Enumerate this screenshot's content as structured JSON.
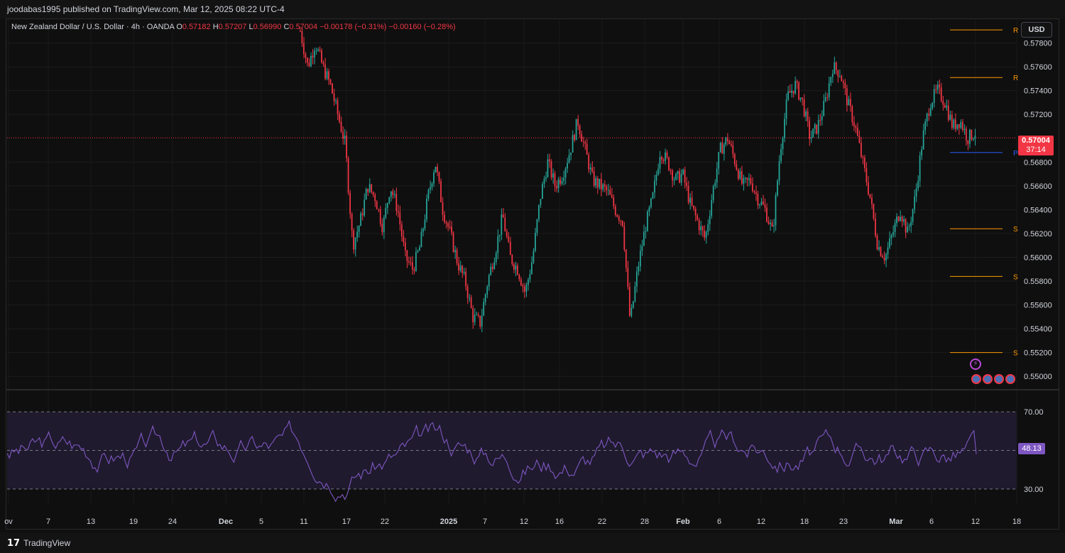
{
  "header": {
    "publisher_text": "joodabas1995 published on TradingView.com, Mar 12, 2025 08:22 UTC-4"
  },
  "legend": {
    "symbol": "New Zealand Dollar / U.S. Dollar · 4h · OANDA",
    "open_label": "O",
    "open": "0.57182",
    "high_label": "H",
    "high": "0.57207",
    "low_label": "L",
    "low": "0.56990",
    "close_label": "C",
    "close": "0.57004",
    "change": "−0.00178 (−0.31%)",
    "change2": "−0.00160 (−0.28%)"
  },
  "currency_button": "USD",
  "last_price": {
    "value": "0.57004",
    "countdown": "37:14"
  },
  "rsi_value": "48.13",
  "footer": {
    "brand": "TradingView"
  },
  "colors": {
    "up": "#26a69a",
    "down": "#f23645",
    "level": "#ff9800",
    "pivot": "#2962ff",
    "rsi": "#7e57c2",
    "rsi_band": "#1f1a2e"
  },
  "chart_data": [
    {
      "type": "candlestick",
      "title": "New Zealand Dollar / U.S. Dollar · 4h · OANDA",
      "ylim": [
        0.549,
        0.58
      ],
      "y_ticks": [
        "0.57800",
        "0.57600",
        "0.57400",
        "0.57200",
        "0.56800",
        "0.56600",
        "0.56400",
        "0.56200",
        "0.56000",
        "0.55800",
        "0.55600",
        "0.55400",
        "0.55200",
        "0.55000"
      ],
      "x_ticks": [
        "ov",
        "7",
        "13",
        "19",
        "24",
        "Dec",
        "5",
        "11",
        "17",
        "22",
        "2025",
        "7",
        "12",
        "16",
        "22",
        "28",
        "Feb",
        "6",
        "12",
        "18",
        "23",
        "Mar",
        "6",
        "12",
        "18"
      ],
      "close_path": [
        [
          "Nov 11",
          0.579
        ],
        [
          "Nov 12",
          0.576
        ],
        [
          "Nov 14",
          0.578
        ],
        [
          "Nov 15",
          0.576
        ],
        [
          "Nov 17",
          0.5745
        ],
        [
          "Nov 18",
          0.572
        ],
        [
          "Nov 19",
          0.5695
        ],
        [
          "Nov 19b",
          0.561
        ],
        [
          "Nov 20",
          0.563
        ],
        [
          "Nov 21",
          0.566
        ],
        [
          "Nov 22",
          0.565
        ],
        [
          "Nov 24",
          0.5625
        ],
        [
          "Nov 26",
          0.566
        ],
        [
          "Nov 27",
          0.564
        ],
        [
          "Nov 28",
          0.56
        ],
        [
          "Nov 29",
          0.559
        ],
        [
          "Dec 1",
          0.561
        ],
        [
          "Dec 3",
          0.565
        ],
        [
          "Dec 4",
          0.568
        ],
        [
          "Dec 5",
          0.564
        ],
        [
          "Dec 6",
          0.562
        ],
        [
          "Dec 7",
          0.5595
        ],
        [
          "Dec 8",
          0.558
        ],
        [
          "Dec 10",
          0.555
        ],
        [
          "Dec 11",
          0.5545
        ],
        [
          "Dec 12",
          0.558
        ],
        [
          "Dec 13",
          0.5605
        ],
        [
          "Dec 15",
          0.5635
        ],
        [
          "Dec 16",
          0.56
        ],
        [
          "Dec 17",
          0.559
        ],
        [
          "Dec 18",
          0.557
        ],
        [
          "Dec 19",
          0.56
        ],
        [
          "Dec 20",
          0.565
        ],
        [
          "Dec 22",
          0.568
        ],
        [
          "Dec 23",
          0.566
        ],
        [
          "Dec 24",
          0.567
        ],
        [
          "Dec 25",
          0.569
        ],
        [
          "Dec 26",
          0.5715
        ],
        [
          "Dec 27",
          0.569
        ],
        [
          "Dec 28",
          0.5665
        ],
        [
          "Dec 29",
          0.566
        ],
        [
          "Dec 31",
          0.5655
        ],
        [
          "Jan 1",
          0.564
        ],
        [
          "Jan 2",
          0.563
        ],
        [
          "Jan 3",
          0.5545
        ],
        [
          "Jan 4",
          0.559
        ],
        [
          "Jan 5",
          0.5625
        ],
        [
          "Jan 6",
          0.565
        ],
        [
          "Jan 7",
          0.569
        ],
        [
          "Jan 8",
          0.568
        ],
        [
          "Jan 9",
          0.5665
        ],
        [
          "Jan 10",
          0.567
        ],
        [
          "Jan 11",
          0.5645
        ],
        [
          "Jan 12",
          0.563
        ],
        [
          "Jan 13",
          0.5615
        ],
        [
          "Jan 14",
          0.5655
        ],
        [
          "Jan 15",
          0.569
        ],
        [
          "Jan 16",
          0.57
        ],
        [
          "Jan 17",
          0.568
        ],
        [
          "Jan 19",
          0.566
        ],
        [
          "Jan 20",
          0.5665
        ],
        [
          "Jan 21",
          0.565
        ],
        [
          "Jan 23",
          0.564
        ],
        [
          "Jan 24",
          0.562
        ],
        [
          "Jan 26",
          0.569
        ],
        [
          "Jan 27",
          0.5735
        ],
        [
          "Jan 28",
          0.5745
        ],
        [
          "Jan 29",
          0.573
        ],
        [
          "Jan 30",
          0.57
        ],
        [
          "Jan 31",
          0.571
        ],
        [
          "Feb 1",
          0.573
        ],
        [
          "Feb 3",
          0.576
        ],
        [
          "Feb 4",
          0.5755
        ],
        [
          "Feb 5",
          0.573
        ],
        [
          "Feb 6",
          0.571
        ],
        [
          "Feb 7",
          0.568
        ],
        [
          "Feb 8",
          0.565
        ],
        [
          "Feb 9",
          0.561
        ],
        [
          "Feb 10",
          0.56
        ],
        [
          "Feb 11",
          0.562
        ],
        [
          "Feb 12",
          0.564
        ],
        [
          "Feb 13",
          0.562
        ],
        [
          "Feb 14",
          0.565
        ],
        [
          "Feb 15",
          0.57
        ],
        [
          "Feb 16",
          0.573
        ],
        [
          "Feb 17",
          0.574
        ],
        [
          "Feb 18",
          0.573
        ],
        [
          "Feb 19",
          0.571
        ],
        [
          "Feb 20",
          0.5715
        ],
        [
          "Feb 21",
          0.57
        ],
        [
          "Feb 22",
          0.5705
        ]
      ]
    },
    {
      "type": "line",
      "title": "RSI",
      "ylim": [
        20,
        80
      ],
      "levels": [
        70,
        50,
        30
      ],
      "y_ticks": [
        "70.00",
        "50.00",
        "30.00"
      ],
      "last": 48.13
    }
  ],
  "levels": [
    {
      "label": "R",
      "price": 0.5791,
      "color": "level"
    },
    {
      "label": "R",
      "price": 0.5751,
      "color": "level"
    },
    {
      "label": "P",
      "price": 0.5688,
      "color": "pivot"
    },
    {
      "label": "S",
      "price": 0.5624,
      "color": "level"
    },
    {
      "label": "S",
      "price": 0.5584,
      "color": "level"
    },
    {
      "label": "S",
      "price": 0.552,
      "color": "level"
    }
  ]
}
